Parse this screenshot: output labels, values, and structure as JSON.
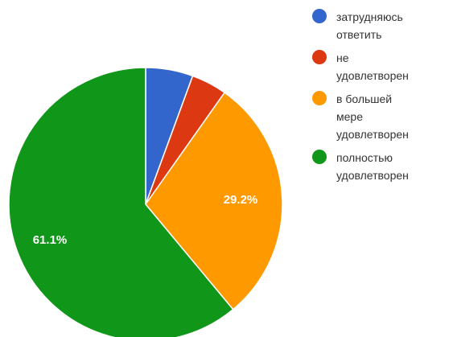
{
  "chart_data": {
    "type": "pie",
    "title": "",
    "labels": [
      "затрудняюсь ответить",
      "не удовлетворен",
      "в большей мере удовлетворен",
      "полностью удовлетворен"
    ],
    "values": [
      5.6,
      4.2,
      29.2,
      61.1
    ],
    "colors": [
      "#3366cc",
      "#dc3912",
      "#ff9900",
      "#109618"
    ],
    "value_labels": [
      "",
      "",
      "29.2%",
      "61.1%"
    ],
    "legend_position": "right",
    "legend": [
      {
        "lines": [
          "затрудняюсь",
          "ответить"
        ],
        "color": "#3366cc"
      },
      {
        "lines": [
          "не",
          "удовлетворен"
        ],
        "color": "#dc3912"
      },
      {
        "lines": [
          "в большей",
          "мере",
          "удовлетворен"
        ],
        "color": "#ff9900"
      },
      {
        "lines": [
          "полностью",
          "удовлетворен"
        ],
        "color": "#109618"
      }
    ]
  }
}
